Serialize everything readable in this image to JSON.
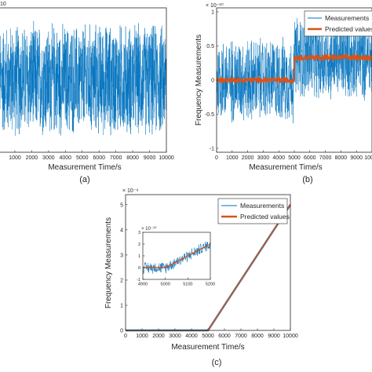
{
  "colors": {
    "measurements": "#0072BD",
    "predicted": "#D95319",
    "axis": "#262626"
  },
  "panel_labels": [
    "(a)",
    "(b)",
    "(c)"
  ],
  "chart_data": [
    {
      "panel": "(a)",
      "type": "line",
      "xlabel": "Measurement Time/s",
      "ylabel": "",
      "exponent_label": "10",
      "x_ticks": [
        1000,
        2000,
        3000,
        4000,
        5000,
        6000,
        7000,
        8000,
        9000,
        10000
      ],
      "xlim": [
        0,
        10000
      ],
      "grid": false,
      "series": [
        {
          "name": "",
          "description": "noise around zero",
          "mean": 0,
          "amplitude": 1
        }
      ]
    },
    {
      "panel": "(b)",
      "type": "line",
      "xlabel": "Measurement Time/s",
      "ylabel": "Frequency Measurements",
      "exponent_label": "× 10⁻¹⁰",
      "xlim": [
        0,
        10000
      ],
      "ylim": [
        -1,
        1
      ],
      "x_ticks": [
        0,
        1000,
        2000,
        3000,
        4000,
        5000,
        6000,
        7000,
        8000,
        9000,
        10000
      ],
      "y_ticks": [
        -1,
        -0.5,
        0,
        0.5,
        1
      ],
      "y_tick_labels": [
        "-1",
        "-0.5",
        "0",
        "0.5",
        "1"
      ],
      "legend_position": "top-right",
      "legend": [
        "Measurements",
        "Predicted values"
      ],
      "series": [
        {
          "name": "Measurements",
          "step_time": 5000,
          "level_before": 0,
          "level_after": 0.33,
          "noise_amplitude": 0.68
        },
        {
          "name": "Predicted values",
          "step_time": 5000,
          "level_before": 0,
          "level_after": 0.33,
          "noise_amplitude": 0.05
        }
      ]
    },
    {
      "panel": "(c)",
      "type": "line",
      "xlabel": "Measurement Time/s",
      "ylabel": "Frequency Measurements",
      "exponent_label": "× 10⁻⁹",
      "xlim": [
        0,
        10000
      ],
      "ylim": [
        0,
        5
      ],
      "x_ticks": [
        0,
        1000,
        2000,
        3000,
        4000,
        5000,
        6000,
        7000,
        8000,
        9000,
        10000
      ],
      "y_ticks": [
        0,
        1,
        2,
        3,
        4,
        5
      ],
      "legend_position": "top-right",
      "legend": [
        "Measurements",
        "Predicted values"
      ],
      "series": [
        {
          "name": "Measurements",
          "points": [
            [
              0,
              0
            ],
            [
              5000,
              0
            ],
            [
              10000,
              5
            ]
          ]
        },
        {
          "name": "Predicted values",
          "points": [
            [
              0,
              0
            ],
            [
              5000,
              0
            ],
            [
              10000,
              5
            ]
          ]
        }
      ],
      "inset": {
        "exponent_label": "× 10⁻¹⁰",
        "xlim": [
          4900,
          5200
        ],
        "ylim": [
          -1,
          3
        ],
        "x_ticks": [
          4900,
          5000,
          5100,
          5200
        ],
        "y_ticks": [
          -1,
          0,
          1,
          2,
          3
        ],
        "series": [
          {
            "name": "Measurements",
            "points": [
              [
                4900,
                0
              ],
              [
                5000,
                0
              ],
              [
                5200,
                2
              ]
            ]
          },
          {
            "name": "Predicted values",
            "points": [
              [
                4900,
                0
              ],
              [
                5000,
                0
              ],
              [
                5200,
                2
              ]
            ]
          }
        ]
      }
    }
  ]
}
